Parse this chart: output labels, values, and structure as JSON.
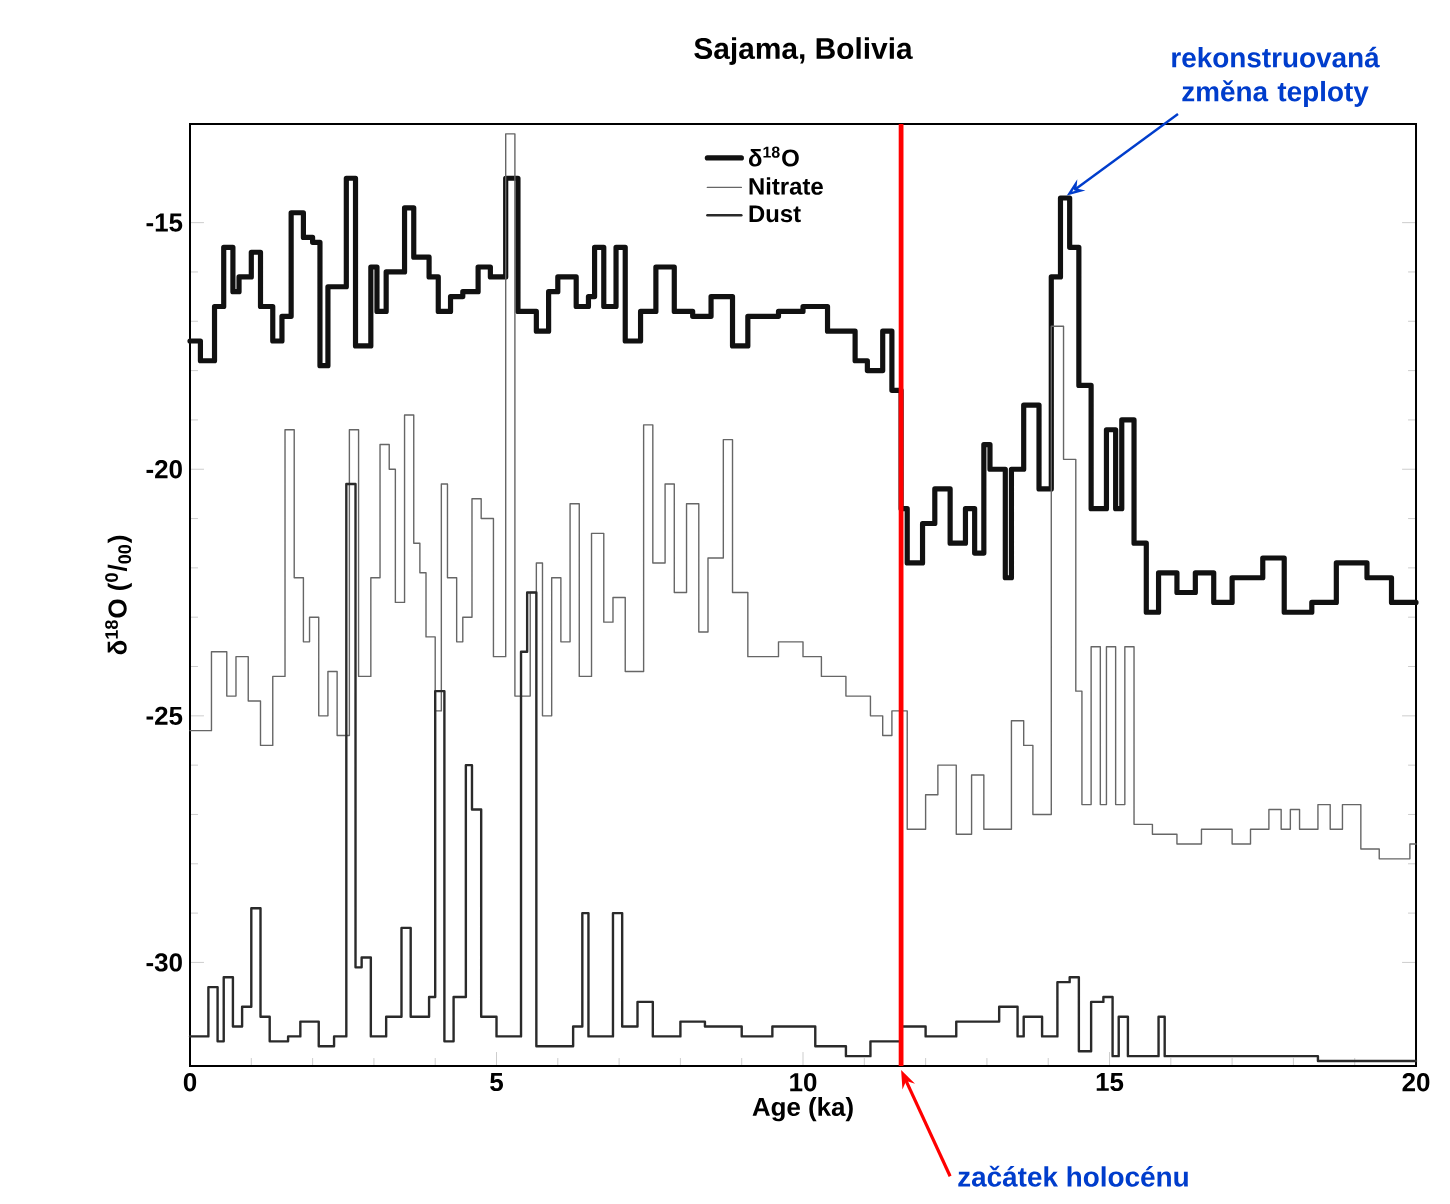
{
  "chart_data": {
    "type": "step",
    "title": "Sajama, Bolivia",
    "xlabel": "Age (ka)",
    "ylabel": "δ$^{18}$O ($^{0}$/$_{00}$)",
    "xlim": [
      0,
      20
    ],
    "ylim": [
      -32.1,
      -13
    ],
    "xticks": [
      0,
      5,
      10,
      15,
      20
    ],
    "yticks": [
      -30,
      -25,
      -20,
      -15
    ],
    "legend": "top",
    "series": [
      {
        "name": "δ$^{18}$O",
        "color": "#111111",
        "x": [
          0,
          0.17,
          0.4,
          0.55,
          0.7,
          0.8,
          1.0,
          1.15,
          1.35,
          1.5,
          1.65,
          1.85,
          2.0,
          2.12,
          2.25,
          2.55,
          2.7,
          2.95,
          3.05,
          3.2,
          3.5,
          3.65,
          3.9,
          4.05,
          4.25,
          4.45,
          4.7,
          4.9,
          5.15,
          5.35,
          5.65,
          5.85,
          6.0,
          6.3,
          6.5,
          6.6,
          6.75,
          6.95,
          7.1,
          7.35,
          7.6,
          7.9,
          8.2,
          8.5,
          8.85,
          9.1,
          9.6,
          10.0,
          10.4,
          10.85,
          11.05,
          11.3,
          11.45,
          11.6,
          11.7,
          11.95,
          12.15,
          12.4,
          12.65,
          12.8,
          12.95,
          13.05,
          13.3,
          13.4,
          13.6,
          13.85,
          14.05,
          14.2,
          14.35,
          14.5,
          14.7,
          14.95,
          15.1,
          15.2,
          15.4,
          15.6,
          15.8,
          16.1,
          16.4,
          16.7,
          17.0,
          17.5,
          17.85,
          18.3,
          18.7,
          19.2,
          19.6,
          20
        ],
        "values": [
          -17.4,
          -17.8,
          -16.7,
          -15.5,
          -16.4,
          -16.1,
          -15.6,
          -16.7,
          -17.4,
          -16.9,
          -14.8,
          -15.3,
          -15.4,
          -17.9,
          -16.3,
          -14.1,
          -17.5,
          -15.9,
          -16.8,
          -16.0,
          -14.7,
          -15.7,
          -16.1,
          -16.8,
          -16.5,
          -16.4,
          -15.9,
          -16.1,
          -14.1,
          -16.8,
          -17.2,
          -16.4,
          -16.1,
          -16.7,
          -16.5,
          -15.5,
          -16.7,
          -15.5,
          -17.4,
          -16.8,
          -15.9,
          -16.8,
          -16.9,
          -16.5,
          -17.5,
          -16.9,
          -16.8,
          -16.7,
          -17.2,
          -17.8,
          -18.0,
          -17.2,
          -18.4,
          -20.8,
          -21.9,
          -21.1,
          -20.4,
          -21.5,
          -20.8,
          -21.7,
          -19.5,
          -20.0,
          -22.2,
          -20.0,
          -18.7,
          -20.4,
          -16.1,
          -14.5,
          -15.5,
          -18.3,
          -20.8,
          -19.2,
          -20.8,
          -19.0,
          -21.5,
          -22.9,
          -22.1,
          -22.5,
          -22.1,
          -22.7,
          -22.2,
          -21.8,
          -22.9,
          -22.7,
          -21.9,
          -22.2,
          -22.7,
          -22.7
        ]
      },
      {
        "name": "Nitrate",
        "color": "#666666",
        "x": [
          0,
          0.35,
          0.6,
          0.75,
          0.95,
          1.15,
          1.35,
          1.55,
          1.7,
          1.85,
          1.95,
          2.1,
          2.25,
          2.4,
          2.6,
          2.75,
          2.95,
          3.1,
          3.25,
          3.35,
          3.5,
          3.65,
          3.75,
          3.85,
          4.0,
          4.1,
          4.2,
          4.35,
          4.45,
          4.6,
          4.75,
          4.95,
          5.15,
          5.3,
          5.55,
          5.65,
          5.75,
          5.9,
          6.05,
          6.2,
          6.35,
          6.55,
          6.75,
          6.9,
          7.1,
          7.4,
          7.55,
          7.75,
          7.9,
          8.1,
          8.3,
          8.45,
          8.7,
          8.85,
          9.1,
          9.6,
          10.0,
          10.3,
          10.7,
          11.1,
          11.3,
          11.45,
          11.7,
          12.0,
          12.2,
          12.5,
          12.75,
          12.95,
          13.4,
          13.6,
          13.75,
          14.05,
          14.25,
          14.45,
          14.55,
          14.7,
          14.85,
          14.95,
          15.1,
          15.25,
          15.4,
          15.7,
          16.1,
          16.5,
          17.0,
          17.3,
          17.6,
          17.8,
          17.95,
          18.1,
          18.4,
          18.6,
          18.8,
          19.1,
          19.4,
          19.9,
          20
        ],
        "values": [
          -25.3,
          -23.7,
          -24.6,
          -23.8,
          -24.7,
          -25.6,
          -24.2,
          -19.2,
          -22.2,
          -23.5,
          -23.0,
          -25.0,
          -24.1,
          -25.4,
          -19.2,
          -24.2,
          -22.2,
          -19.5,
          -20.0,
          -22.7,
          -18.9,
          -21.5,
          -22.1,
          -23.4,
          -24.9,
          -20.3,
          -22.2,
          -23.5,
          -23.0,
          -20.6,
          -21.0,
          -23.8,
          -13.2,
          -24.6,
          -22.5,
          -21.9,
          -25.0,
          -22.2,
          -23.5,
          -20.7,
          -24.2,
          -21.3,
          -23.1,
          -22.6,
          -24.1,
          -19.1,
          -21.9,
          -20.3,
          -22.5,
          -20.7,
          -23.3,
          -21.8,
          -19.4,
          -22.5,
          -23.8,
          -23.5,
          -23.8,
          -24.2,
          -24.6,
          -25.0,
          -25.4,
          -24.9,
          -27.3,
          -26.6,
          -26.0,
          -27.4,
          -26.2,
          -27.3,
          -25.1,
          -25.6,
          -27.0,
          -17.1,
          -19.8,
          -24.5,
          -26.8,
          -23.6,
          -26.8,
          -23.6,
          -26.8,
          -23.6,
          -27.2,
          -27.4,
          -27.6,
          -27.3,
          -27.6,
          -27.3,
          -26.9,
          -27.3,
          -26.9,
          -27.3,
          -26.8,
          -27.3,
          -26.8,
          -27.7,
          -27.9,
          -27.6,
          -27.6
        ]
      },
      {
        "name": "Dust",
        "color": "#2a2a2a",
        "x": [
          0,
          0.3,
          0.45,
          0.55,
          0.7,
          0.85,
          1.0,
          1.15,
          1.3,
          1.6,
          1.8,
          2.1,
          2.35,
          2.55,
          2.7,
          2.8,
          2.95,
          3.2,
          3.45,
          3.6,
          3.9,
          4.0,
          4.15,
          4.3,
          4.5,
          4.6,
          4.75,
          5.0,
          5.4,
          5.5,
          5.65,
          6.25,
          6.4,
          6.5,
          6.9,
          7.05,
          7.3,
          7.55,
          8.0,
          8.4,
          9.0,
          9.5,
          10.2,
          10.7,
          11.1,
          11.6,
          12.0,
          12.5,
          13.2,
          13.5,
          13.6,
          13.9,
          14.15,
          14.35,
          14.5,
          14.7,
          14.9,
          15.05,
          15.15,
          15.3,
          15.8,
          15.9,
          16.5,
          17.5,
          18.4,
          19.5,
          20
        ],
        "values": [
          -31.5,
          -30.5,
          -31.6,
          -30.3,
          -31.3,
          -30.9,
          -28.9,
          -31.1,
          -31.6,
          -31.5,
          -31.2,
          -31.7,
          -31.5,
          -20.3,
          -30.1,
          -29.9,
          -31.5,
          -31.1,
          -29.3,
          -31.1,
          -30.7,
          -24.5,
          -31.6,
          -30.7,
          -26.0,
          -26.9,
          -31.1,
          -31.5,
          -23.7,
          -22.5,
          -31.7,
          -31.3,
          -29.0,
          -31.5,
          -29.0,
          -31.3,
          -30.8,
          -31.5,
          -31.2,
          -31.3,
          -31.5,
          -31.3,
          -31.7,
          -31.9,
          -31.6,
          -31.3,
          -31.5,
          -31.2,
          -30.9,
          -31.5,
          -31.1,
          -31.5,
          -30.4,
          -30.3,
          -31.8,
          -30.8,
          -30.7,
          -31.9,
          -31.1,
          -31.9,
          -31.1,
          -31.9,
          -31.9,
          -31.9,
          -32.0,
          -32.0,
          -32.0
        ]
      }
    ],
    "ref_lines": [
      {
        "axis": "x",
        "value": 11.6,
        "label": "začátek holocénu",
        "color": "#ff0000"
      }
    ],
    "annotations": [
      {
        "text": "rekonstruovaná změna teploty",
        "x": 14.25,
        "y": -14.5
      }
    ]
  }
}
